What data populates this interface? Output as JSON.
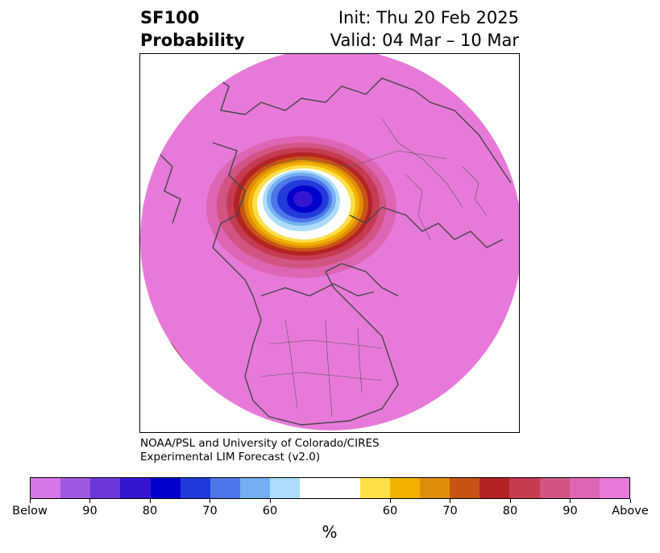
{
  "header": {
    "title_line1": "SF100",
    "title_line2": "Probability",
    "init_text": "Init: Thu 20 Feb 2025",
    "valid_text": "Valid: 04 Mar – 10 Mar"
  },
  "credit": {
    "line1": "NOAA/PSL and University of Colorado/CIRES",
    "line2": "Experimental LIM Forecast (v2.0)"
  },
  "colorbar": {
    "colors": [
      "#d676e8",
      "#9e57e0",
      "#6a38d9",
      "#3516d0",
      "#0000cc",
      "#2239db",
      "#4c76e9",
      "#74b0f1",
      "#acdcfa",
      "#ffffff",
      "#fddf4a",
      "#f2b100",
      "#e08c0b",
      "#c85414",
      "#b32323",
      "#c63a52",
      "#d15483",
      "#dd65b3",
      "#e77ad9"
    ],
    "tick_labels": [
      "Below",
      "90",
      "80",
      "70",
      "60",
      "60",
      "70",
      "80",
      "90",
      "Above"
    ],
    "unit": "%"
  },
  "map": {
    "background_color": "#e77ad9",
    "border_color": "#444444"
  }
}
